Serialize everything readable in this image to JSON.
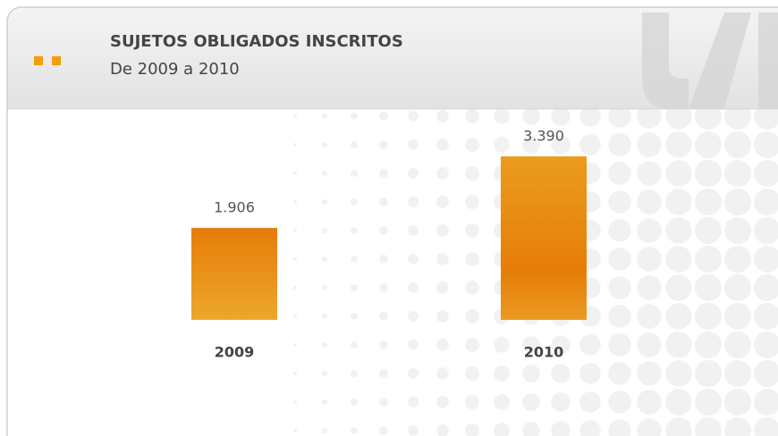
{
  "chart_data": {
    "type": "bar",
    "title": "SUJETOS OBLIGADOS INSCRITOS",
    "subtitle": "De 2009 a 2010",
    "categories": [
      "2009",
      "2010"
    ],
    "values": [
      1906,
      3390
    ],
    "value_labels": [
      "1.906",
      "3.390"
    ],
    "color": "#e8890f"
  }
}
